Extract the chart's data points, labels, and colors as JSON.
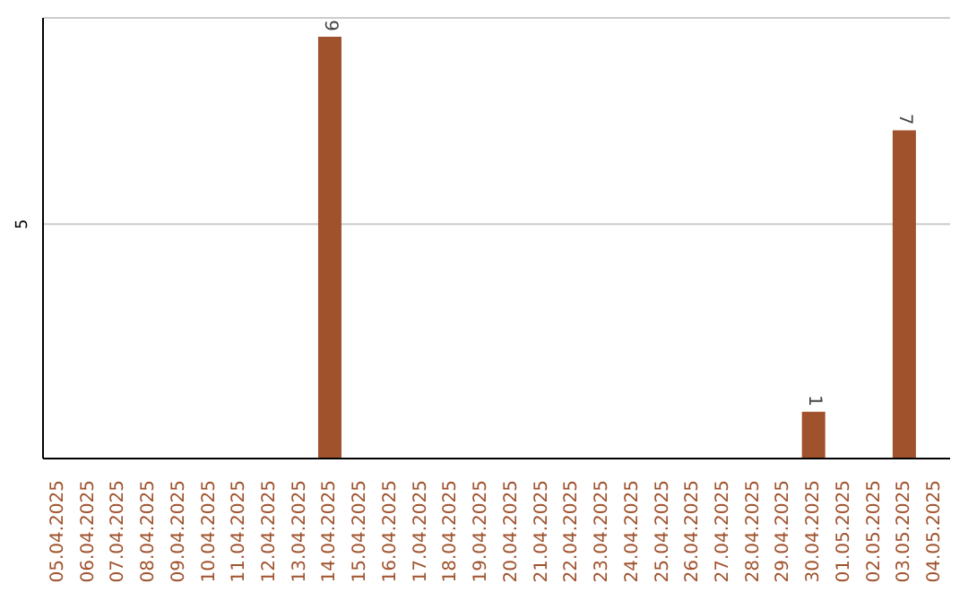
{
  "chart_data": {
    "type": "bar",
    "categories": [
      "05.04.2025",
      "06.04.2025",
      "07.04.2025",
      "08.04.2025",
      "09.04.2025",
      "10.04.2025",
      "11.04.2025",
      "12.04.2025",
      "13.04.2025",
      "14.04.2025",
      "15.04.2025",
      "16.04.2025",
      "17.04.2025",
      "18.04.2025",
      "19.04.2025",
      "20.04.2025",
      "21.04.2025",
      "22.04.2025",
      "23.04.2025",
      "24.04.2025",
      "25.04.2025",
      "26.04.2025",
      "27.04.2025",
      "28.04.2025",
      "29.04.2025",
      "30.04.2025",
      "01.05.2025",
      "02.05.2025",
      "03.05.2025",
      "04.05.2025"
    ],
    "values": [
      null,
      null,
      null,
      null,
      null,
      null,
      null,
      null,
      null,
      9,
      null,
      null,
      null,
      null,
      null,
      null,
      null,
      null,
      null,
      null,
      null,
      null,
      null,
      null,
      null,
      1,
      null,
      null,
      7,
      null
    ],
    "color": "#a0522d",
    "ylim": [
      0,
      9.4
    ],
    "yticks": [
      5
    ],
    "grid": "y",
    "data_labels": true
  }
}
